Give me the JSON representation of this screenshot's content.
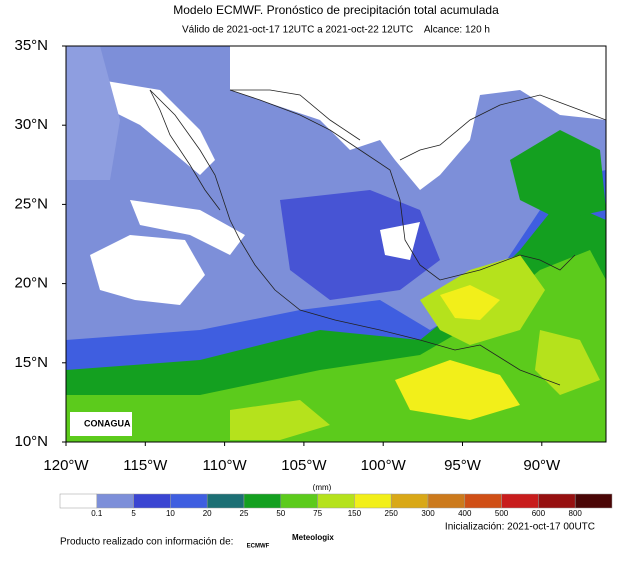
{
  "header": {
    "title": "Modelo ECMWF. Pronóstico de precipitación total acumulada",
    "subtitle": "Válido de 2021-oct-17 12UTC a 2021-oct-22 12UTC    Alcance: 120 h"
  },
  "map": {
    "lat_labels": [
      "35°N",
      "30°N",
      "25°N",
      "20°N",
      "15°N",
      "10°N"
    ],
    "lon_labels": [
      "120°W",
      "115°W",
      "110°W",
      "105°W",
      "100°W",
      "95°W",
      "90°W"
    ],
    "logo": "CONAGUA"
  },
  "colorbar": {
    "unit": "(mm)",
    "levels": [
      "0.1",
      "5",
      "10",
      "20",
      "25",
      "50",
      "75",
      "150",
      "250",
      "300",
      "400",
      "500",
      "600",
      "800"
    ],
    "colors": [
      "#ffffff",
      "#7d8fd9",
      "#3a45d2",
      "#3f5ee0",
      "#1c6f74",
      "#14a020",
      "#5ccb1c",
      "#b5e21c",
      "#f2ef1a",
      "#d9a817",
      "#cc7a1c",
      "#d04f16",
      "#c81c1c",
      "#961010",
      "#4a0606"
    ]
  },
  "footer": {
    "init": "Inicialización: 2021-oct-17 00UTC",
    "credit": "Producto realizado con información de:",
    "logos": [
      "ECMWF",
      "Meteologix"
    ]
  }
}
